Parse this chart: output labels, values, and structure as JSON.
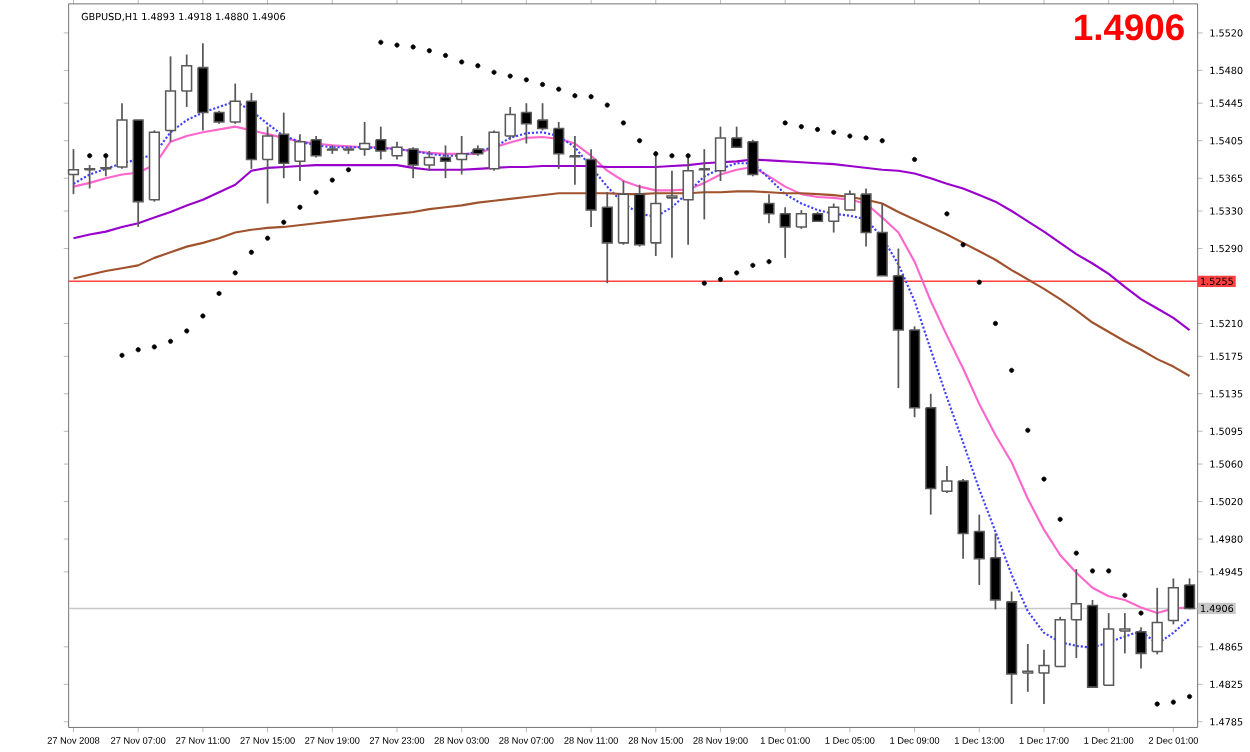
{
  "chart_data": {
    "type": "candlestick",
    "title": "GBPUSD,H1 1.4893 1.4918 1.4880 1.4906",
    "annotations": [
      "1.4906"
    ],
    "categories": [
      "27 Nov 2008",
      null,
      null,
      null,
      "27 Nov 07:00",
      null,
      null,
      null,
      "27 Nov 11:00",
      null,
      null,
      null,
      "27 Nov 15:00",
      null,
      null,
      null,
      "27 Nov 19:00",
      null,
      null,
      null,
      "27 Nov 23:00",
      null,
      null,
      null,
      "28 Nov 03:00",
      null,
      null,
      null,
      "28 Nov 07:00",
      null,
      null,
      null,
      "28 Nov 11:00",
      null,
      null,
      null,
      "28 Nov 15:00",
      null,
      null,
      null,
      "28 Nov 19:00",
      null,
      null,
      null,
      "1 Dec 01:00",
      null,
      null,
      null,
      "1 Dec 05:00",
      null,
      null,
      null,
      "1 Dec 09:00",
      null,
      null,
      null,
      "1 Dec 13:00",
      null,
      null,
      null,
      "1 Dec 17:00",
      null,
      null,
      null,
      "1 Dec 21:00",
      null,
      null,
      null,
      "2 Dec 01:00",
      null
    ],
    "ohlc": [
      [
        1.5369,
        1.5396,
        1.5348,
        1.5374
      ],
      [
        1.5374,
        1.5379,
        1.5354,
        1.5375
      ],
      [
        1.5375,
        1.5389,
        1.5367,
        1.5376
      ],
      [
        1.5377,
        1.5445,
        1.5375,
        1.5427
      ],
      [
        1.5427,
        1.5427,
        1.5313,
        1.534
      ],
      [
        1.5342,
        1.5416,
        1.534,
        1.5414
      ],
      [
        1.5416,
        1.5495,
        1.5404,
        1.5458
      ],
      [
        1.5458,
        1.5497,
        1.5441,
        1.5485
      ],
      [
        1.5483,
        1.5509,
        1.5416,
        1.5435
      ],
      [
        1.5435,
        1.5437,
        1.5423,
        1.5425
      ],
      [
        1.5425,
        1.5466,
        1.5423,
        1.5447
      ],
      [
        1.5447,
        1.5456,
        1.5375,
        1.5385
      ],
      [
        1.5385,
        1.542,
        1.5338,
        1.541
      ],
      [
        1.5412,
        1.5435,
        1.5365,
        1.5381
      ],
      [
        1.5383,
        1.5412,
        1.5362,
        1.5404
      ],
      [
        1.5406,
        1.541,
        1.5387,
        1.5389
      ],
      [
        1.5396,
        1.54,
        1.5391,
        1.5395
      ],
      [
        1.5395,
        1.5398,
        1.5391,
        1.5396
      ],
      [
        1.5396,
        1.5425,
        1.5389,
        1.5402
      ],
      [
        1.5406,
        1.542,
        1.5385,
        1.5394
      ],
      [
        1.5389,
        1.5404,
        1.5385,
        1.5398
      ],
      [
        1.5396,
        1.5398,
        1.5365,
        1.5379
      ],
      [
        1.5379,
        1.5394,
        1.5373,
        1.5387
      ],
      [
        1.5387,
        1.54,
        1.5365,
        1.5383
      ],
      [
        1.5385,
        1.541,
        1.5369,
        1.5391
      ],
      [
        1.5396,
        1.54,
        1.5389,
        1.5391
      ],
      [
        1.5375,
        1.5416,
        1.5373,
        1.5414
      ],
      [
        1.541,
        1.5441,
        1.5406,
        1.5433
      ],
      [
        1.5435,
        1.5445,
        1.5402,
        1.5423
      ],
      [
        1.5427,
        1.5445,
        1.5416,
        1.5418
      ],
      [
        1.5418,
        1.5425,
        1.5375,
        1.5391
      ],
      [
        1.5389,
        1.541,
        1.5358,
        1.5388
      ],
      [
        1.5385,
        1.5396,
        1.5313,
        1.5331
      ],
      [
        1.5334,
        1.535,
        1.5253,
        1.5296
      ],
      [
        1.5296,
        1.5362,
        1.5294,
        1.5348
      ],
      [
        1.5348,
        1.5358,
        1.5292,
        1.5294
      ],
      [
        1.5296,
        1.5394,
        1.5282,
        1.5338
      ],
      [
        1.5344,
        1.5373,
        1.528,
        1.5346
      ],
      [
        1.5342,
        1.5389,
        1.5294,
        1.5373
      ],
      [
        1.5375,
        1.5396,
        1.5321,
        1.5374
      ],
      [
        1.5373,
        1.542,
        1.5362,
        1.5408
      ],
      [
        1.5408,
        1.542,
        1.5398,
        1.5398
      ],
      [
        1.5404,
        1.5406,
        1.5367,
        1.5369
      ],
      [
        1.5338,
        1.5348,
        1.5317,
        1.5327
      ],
      [
        1.5327,
        1.5334,
        1.528,
        1.5313
      ],
      [
        1.5313,
        1.5331,
        1.5311,
        1.5327
      ],
      [
        1.5327,
        1.5329,
        1.5319,
        1.5319
      ],
      [
        1.5319,
        1.5338,
        1.5307,
        1.5334
      ],
      [
        1.5331,
        1.5352,
        1.5331,
        1.5348
      ],
      [
        1.5348,
        1.5354,
        1.5292,
        1.5307
      ],
      [
        1.5307,
        1.5338,
        1.5261,
        1.5261
      ],
      [
        1.5261,
        1.529,
        1.5141,
        1.5203
      ],
      [
        1.5203,
        1.5207,
        1.511,
        1.512
      ],
      [
        1.512,
        1.5135,
        1.5006,
        1.5034
      ],
      [
        1.5031,
        1.5058,
        1.5029,
        1.5042
      ],
      [
        1.5042,
        1.5044,
        1.4959,
        1.4986
      ],
      [
        1.4988,
        1.5006,
        1.4931,
        1.4959
      ],
      [
        1.496,
        1.4986,
        1.4905,
        1.4915
      ],
      [
        1.4913,
        1.4924,
        1.4804,
        1.4836
      ],
      [
        1.4837,
        1.4868,
        1.4817,
        1.4839
      ],
      [
        1.4837,
        1.4862,
        1.4804,
        1.4845
      ],
      [
        1.4844,
        1.4897,
        1.4844,
        1.4894
      ],
      [
        1.4894,
        1.4948,
        1.4853,
        1.4911
      ],
      [
        1.4909,
        1.4915,
        1.4822,
        1.4822
      ],
      [
        1.4824,
        1.4901,
        1.4824,
        1.4884
      ],
      [
        1.4882,
        1.4901,
        1.4858,
        1.4884
      ],
      [
        1.4881,
        1.4886,
        1.4842,
        1.4858
      ],
      [
        1.486,
        1.4928,
        1.4857,
        1.4891
      ],
      [
        1.4893,
        1.4938,
        1.4889,
        1.4928
      ],
      [
        1.4931,
        1.4938,
        1.4905,
        1.4906
      ]
    ],
    "series": [
      {
        "type": "line",
        "color": "#ff66cc",
        "line_style": "solid",
        "values": [
          1.5356,
          1.536,
          1.5365,
          1.5369,
          1.5371,
          1.5379,
          1.5404,
          1.541,
          1.5414,
          1.5417,
          1.542,
          1.5416,
          1.5412,
          1.5408,
          1.5404,
          1.5402,
          1.54,
          1.5399,
          1.5398,
          1.5398,
          1.5396,
          1.5394,
          1.5392,
          1.5391,
          1.5391,
          1.5391,
          1.5398,
          1.5403,
          1.5408,
          1.5409,
          1.5407,
          1.5402,
          1.5389,
          1.5373,
          1.5362,
          1.5356,
          1.5352,
          1.5352,
          1.5353,
          1.536,
          1.5369,
          1.5374,
          1.5377,
          1.5367,
          1.5356,
          1.5348,
          1.5345,
          1.5344,
          1.5342,
          1.5338,
          1.5323,
          1.5307,
          1.5276,
          1.5234,
          1.5197,
          1.5162,
          1.5124,
          1.5091,
          1.5062,
          1.5023,
          1.499,
          1.4963,
          1.4944,
          1.4928,
          1.4919,
          1.4915,
          1.4907,
          1.4901,
          1.4906,
          1.4907
        ]
      },
      {
        "type": "line",
        "color": "#4040ff",
        "line_style": "dotted",
        "values": [
          1.5359,
          1.5369,
          1.5375,
          1.5381,
          1.5385,
          1.5391,
          1.5414,
          1.5427,
          1.5435,
          1.5441,
          1.5447,
          1.5437,
          1.5423,
          1.541,
          1.5404,
          1.54,
          1.5398,
          1.5398,
          1.5398,
          1.5397,
          1.5396,
          1.5394,
          1.5391,
          1.5389,
          1.5389,
          1.5394,
          1.5398,
          1.5408,
          1.5413,
          1.5414,
          1.541,
          1.5398,
          1.5377,
          1.5356,
          1.5338,
          1.5327,
          1.5324,
          1.5334,
          1.535,
          1.5367,
          1.5375,
          1.5381,
          1.5381,
          1.5365,
          1.5348,
          1.5338,
          1.5331,
          1.5327,
          1.5325,
          1.5321,
          1.5302,
          1.5273,
          1.5234,
          1.5182,
          1.5131,
          1.5083,
          1.5033,
          1.4988,
          1.4942,
          1.4903,
          1.488,
          1.487,
          1.4866,
          1.4864,
          1.487,
          1.4876,
          1.4882,
          1.4868,
          1.488,
          1.4895
        ]
      },
      {
        "type": "line",
        "color": "#9900cc",
        "line_style": "solid",
        "values": [
          1.5301,
          1.5305,
          1.5308,
          1.5313,
          1.5317,
          1.5323,
          1.5329,
          1.5336,
          1.5342,
          1.535,
          1.5358,
          1.5373,
          1.5376,
          1.5377,
          1.5378,
          1.5379,
          1.5379,
          1.5379,
          1.5379,
          1.5379,
          1.5379,
          1.5376,
          1.5374,
          1.5374,
          1.5374,
          1.5375,
          1.5376,
          1.5377,
          1.5377,
          1.5378,
          1.5378,
          1.5378,
          1.5378,
          1.5377,
          1.5377,
          1.5377,
          1.5377,
          1.5378,
          1.5379,
          1.5381,
          1.5382,
          1.5383,
          1.5385,
          1.5384,
          1.5383,
          1.5382,
          1.5381,
          1.538,
          1.5378,
          1.5376,
          1.5374,
          1.5373,
          1.537,
          1.5365,
          1.5359,
          1.5354,
          1.5347,
          1.534,
          1.533,
          1.5319,
          1.5308,
          1.5296,
          1.5284,
          1.5274,
          1.5263,
          1.5249,
          1.5236,
          1.5226,
          1.5216,
          1.5203
        ]
      },
      {
        "type": "line",
        "color": "#a0522d",
        "line_style": "solid",
        "values": [
          1.5258,
          1.5262,
          1.5266,
          1.5269,
          1.5272,
          1.528,
          1.5286,
          1.5292,
          1.5296,
          1.5301,
          1.5307,
          1.531,
          1.5312,
          1.5313,
          1.5315,
          1.5317,
          1.5319,
          1.5321,
          1.5323,
          1.5325,
          1.5327,
          1.5329,
          1.5332,
          1.5334,
          1.5336,
          1.5339,
          1.5341,
          1.5343,
          1.5345,
          1.5347,
          1.5349,
          1.5349,
          1.5349,
          1.5349,
          1.5348,
          1.5348,
          1.5349,
          1.5349,
          1.5349,
          1.535,
          1.535,
          1.5351,
          1.5351,
          1.535,
          1.5349,
          1.5349,
          1.5348,
          1.5347,
          1.5345,
          1.5342,
          1.5338,
          1.5329,
          1.5321,
          1.5313,
          1.5305,
          1.5296,
          1.5287,
          1.5278,
          1.5267,
          1.5257,
          1.5247,
          1.5236,
          1.5224,
          1.5211,
          1.5201,
          1.5191,
          1.5182,
          1.5172,
          1.5164,
          1.5154
        ]
      },
      {
        "type": "scatter",
        "color": "#000000",
        "values": [
          null,
          1.5389,
          1.5389,
          1.5176,
          1.5182,
          1.5185,
          1.5191,
          1.5202,
          1.5218,
          1.5242,
          1.5264,
          1.5286,
          1.5301,
          1.5318,
          1.5334,
          1.535,
          1.5363,
          1.5374,
          null,
          1.551,
          1.5507,
          1.5505,
          1.5501,
          1.5496,
          1.5489,
          1.5485,
          1.5478,
          1.5474,
          1.547,
          1.5465,
          1.546,
          1.5453,
          1.5452,
          1.5443,
          1.5424,
          1.5405,
          1.5391,
          1.5389,
          1.5389,
          1.5253,
          1.5257,
          1.5264,
          1.5272,
          1.5276,
          1.5424,
          1.542,
          1.5417,
          1.5414,
          1.541,
          1.5408,
          1.5405,
          null,
          1.5385,
          null,
          1.5327,
          1.5294,
          1.5254,
          1.521,
          1.516,
          1.5096,
          1.5044,
          1.5001,
          1.4965,
          1.4946,
          1.4946,
          1.492,
          1.4901,
          1.4804,
          1.4806,
          1.4812
        ]
      }
    ],
    "ylim": [
      1.4779,
      1.5551
    ],
    "yticks": [
      {
        "value": 1.552,
        "label": "1.5520"
      },
      {
        "value": 1.548,
        "label": "1.5480"
      },
      {
        "value": 1.5445,
        "label": "1.5445"
      },
      {
        "value": 1.5405,
        "label": "1.5405"
      },
      {
        "value": 1.5365,
        "label": "1.5365"
      },
      {
        "value": 1.533,
        "label": "1.5330"
      },
      {
        "value": 1.529,
        "label": "1.5290"
      },
      {
        "value": 1.521,
        "label": "1.5210"
      },
      {
        "value": 1.5175,
        "label": "1.5175"
      },
      {
        "value": 1.5135,
        "label": "1.5135"
      },
      {
        "value": 1.5095,
        "label": "1.5095"
      },
      {
        "value": 1.506,
        "label": "1.5060"
      },
      {
        "value": 1.502,
        "label": "1.5020"
      },
      {
        "value": 1.498,
        "label": "1.4980"
      },
      {
        "value": 1.4945,
        "label": "1.4945"
      },
      {
        "value": 1.4865,
        "label": "1.4865"
      },
      {
        "value": 1.4825,
        "label": "1.4825"
      },
      {
        "value": 1.4785,
        "label": "1.4785"
      }
    ],
    "ref_lines": [
      {
        "axis": "y",
        "value": 1.5255,
        "label": "1.5255",
        "color": "#ff4040"
      },
      {
        "axis": "y",
        "value": 1.4906,
        "label": "1.4906",
        "color": "#c8c8c8"
      }
    ]
  }
}
